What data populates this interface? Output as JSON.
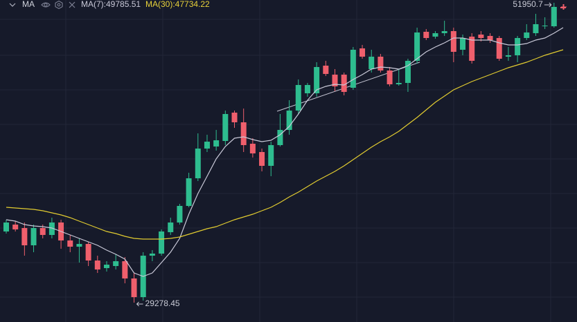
{
  "chart_data": {
    "type": "candlestick",
    "title": "MA",
    "legend": [
      "MA(7):49785.51",
      "MA(30):47734.22"
    ],
    "up_color": "#2ebd8f",
    "down_color": "#ef5f6c",
    "open": [
      34659,
      35181,
      34920,
      33614,
      34920,
      34397,
      35338,
      33980,
      33509,
      33718,
      32464,
      31890,
      32047,
      32412,
      31107,
      29695,
      32830,
      32987,
      34606,
      35338,
      36592,
      38681,
      40928,
      41084,
      41502,
      43644,
      42913,
      41293,
      40666,
      39622,
      41189,
      42338,
      43801,
      45107,
      45107,
      47196,
      46517,
      46517,
      45525,
      48502,
      46935,
      47875,
      46830,
      45786,
      45890,
      47562,
      49756,
      49390,
      49651,
      49808,
      48398,
      49390,
      49547,
      49443,
      49286,
      47875,
      47980,
      49286,
      49651,
      50174,
      50174,
      51637
    ],
    "high": [
      35546,
      35442,
      35338,
      35181,
      35181,
      35703,
      35546,
      34397,
      34136,
      33875,
      32830,
      32412,
      32935,
      32726,
      31524,
      33092,
      33248,
      34815,
      35703,
      36748,
      39099,
      42077,
      41972,
      42338,
      43801,
      43801,
      43952,
      41711,
      40928,
      41450,
      43540,
      44584,
      46152,
      45890,
      47457,
      47562,
      46935,
      46674,
      48607,
      48763,
      48398,
      48084,
      47092,
      46935,
      47719,
      50069,
      49965,
      49808,
      50592,
      50069,
      49547,
      49651,
      49808,
      49651,
      49443,
      48607,
      49443,
      50331,
      51114,
      50853,
      51950.7,
      51846
    ],
    "low": [
      34502,
      34659,
      32830,
      33092,
      34136,
      34136,
      33353,
      33092,
      32308,
      32047,
      31524,
      31629,
      31786,
      30741,
      29278.45,
      29434,
      32412,
      32830,
      34397,
      35181,
      36487,
      38472,
      40666,
      40771,
      41189,
      42495,
      40666,
      40248,
      39204,
      38838,
      41084,
      41972,
      43540,
      44845,
      44845,
      46413,
      45264,
      44950,
      45368,
      47719,
      46674,
      46674,
      45629,
      45681,
      45211,
      47353,
      49129,
      49234,
      49443,
      47457,
      47980,
      47353,
      49025,
      48920,
      47562,
      47562,
      47457,
      49129,
      49443,
      49965,
      50069,
      51428
    ],
    "close": [
      35338,
      34815,
      33614,
      34920,
      34397,
      35338,
      33980,
      33509,
      33718,
      32464,
      31786,
      32151,
      32412,
      31107,
      29695,
      32830,
      32987,
      34659,
      35338,
      36592,
      38681,
      40928,
      41450,
      41554,
      43540,
      42913,
      41189,
      40562,
      39622,
      41189,
      42338,
      43801,
      45734,
      45734,
      47092,
      46569,
      45629,
      45211,
      48398,
      47875,
      47875,
      46830,
      45786,
      45890,
      47562,
      49704,
      49286,
      49651,
      49808,
      48241,
      49286,
      47562,
      49286,
      49129,
      47719,
      47980,
      49286,
      49704,
      50331,
      50226,
      51637,
      51532
    ],
    "series": [
      {
        "color": "#c9c9d8",
        "values": [
          35546,
          35442,
          35181,
          35077,
          35024,
          34920,
          34659,
          34397,
          34136,
          33875,
          33614,
          33248,
          32935,
          32569,
          31524,
          31263,
          31524,
          32308,
          33092,
          34136,
          35964,
          37532,
          38838,
          40144,
          41084,
          41711,
          41815,
          41606,
          41450,
          41554,
          41972,
          42599,
          43540,
          44584,
          45368,
          45629,
          45786,
          45734,
          46152,
          46517,
          46935,
          47092,
          47039,
          46935,
          47196,
          47719,
          48241,
          48607,
          48920,
          49286,
          49286,
          49129,
          49129,
          49129,
          48920,
          48763,
          48763,
          48868,
          49129,
          49286,
          49651,
          50069
        ]
      },
      {
        "color": "#e2cc30",
        "values": [
          36487,
          36435,
          36383,
          36331,
          36227,
          36070,
          35913,
          35703,
          35442,
          35181,
          34920,
          34659,
          34502,
          34293,
          34136,
          34084,
          34084,
          34084,
          34136,
          34241,
          34450,
          34659,
          34868,
          35024,
          35286,
          35546,
          35755,
          35964,
          36227,
          36487,
          36853,
          37271,
          37637,
          38054,
          38472,
          38838,
          39204,
          39622,
          40091,
          40562,
          41032,
          41450,
          41815,
          42233,
          42757,
          43278,
          43853,
          44428,
          44898,
          45368,
          45681,
          45995,
          46256,
          46517,
          46778,
          47039,
          47248,
          47457,
          47719,
          47980,
          48189,
          48398
        ]
      }
    ],
    "annotations": [
      {
        "label": "51950.7",
        "value": 51950.7
      },
      {
        "label": "29278.45",
        "value": 29278.45
      }
    ]
  }
}
